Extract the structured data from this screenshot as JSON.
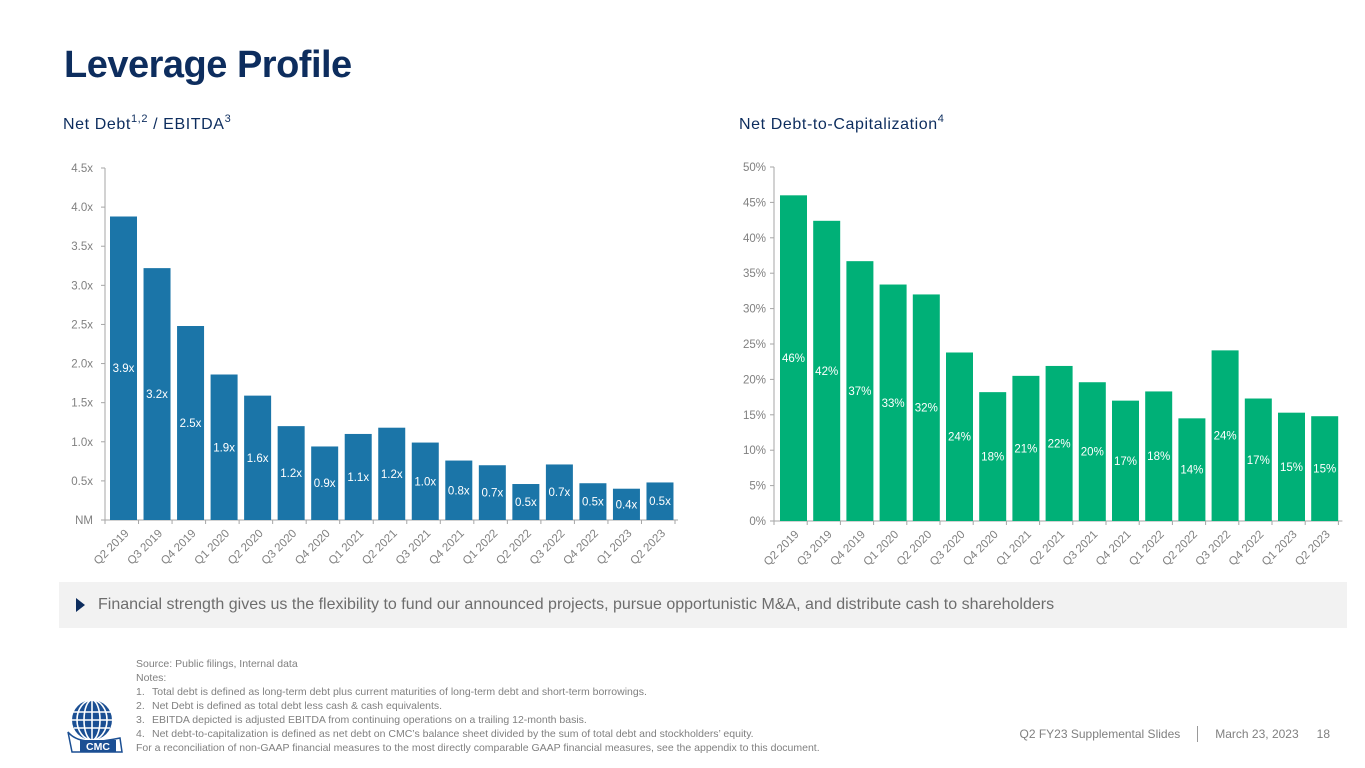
{
  "page": {
    "title": "Leverage Profile",
    "callout": "Financial strength gives us the flexibility to fund our announced projects, pursue opportunistic M&A, and distribute cash to shareholders",
    "notes": {
      "source": "Source: Public filings, Internal data",
      "heading": "Notes:",
      "items": [
        {
          "num": "1.",
          "text": "Total debt is defined as long-term debt plus current maturities of long-term debt and short-term borrowings."
        },
        {
          "num": "2.",
          "text": "Net Debt is defined as total debt less cash & cash equivalents."
        },
        {
          "num": "3.",
          "text": "EBITDA depicted is adjusted EBITDA from continuing operations on a trailing 12-month basis."
        },
        {
          "num": "4.",
          "text": "Net debt-to-capitalization is defined as net debt on CMC’s balance sheet divided by the sum of total debt and stockholders’ equity."
        }
      ],
      "reconciliation": "For a reconciliation of non-GAAP financial measures to the most directly comparable GAAP financial measures, see the appendix to this document."
    },
    "footer": {
      "deck": "Q2 FY23 Supplemental Slides",
      "date": "March 23, 2023",
      "page_number": "18"
    },
    "logo": {
      "text": "CMC",
      "icon": "globe-icon"
    },
    "callout_icon": "triangle-right-icon"
  },
  "chart_data": [
    {
      "type": "bar",
      "title": "Net Debt / EBITDA",
      "title_parts": {
        "main": "Net Debt",
        "sup1": "1,2",
        "mid": " / EBITDA",
        "sup2": "3"
      },
      "xlabel": "",
      "ylabel": "",
      "color": "#1b75a8",
      "ylim": [
        0,
        4.5
      ],
      "yticks": [
        0,
        0.5,
        1.0,
        1.5,
        2.0,
        2.5,
        3.0,
        3.5,
        4.0,
        4.5
      ],
      "ytick_labels": [
        "NM",
        "0.5x",
        "1.0x",
        "1.5x",
        "2.0x",
        "2.5x",
        "3.0x",
        "3.5x",
        "4.0x",
        "4.5x"
      ],
      "grid": false,
      "categories": [
        "Q2 2019",
        "Q3 2019",
        "Q4 2019",
        "Q1 2020",
        "Q2 2020",
        "Q3 2020",
        "Q4 2020",
        "Q1 2021",
        "Q2 2021",
        "Q3 2021",
        "Q4 2021",
        "Q1 2022",
        "Q2 2022",
        "Q3 2022",
        "Q4 2022",
        "Q1 2023",
        "Q2 2023"
      ],
      "values": [
        3.88,
        3.22,
        2.48,
        1.86,
        1.59,
        1.2,
        0.94,
        1.1,
        1.18,
        0.99,
        0.76,
        0.7,
        0.46,
        0.71,
        0.47,
        0.4,
        0.48
      ],
      "labels": [
        "3.9x",
        "3.2x",
        "2.5x",
        "1.9x",
        "1.6x",
        "1.2x",
        "0.9x",
        "1.1x",
        "1.2x",
        "1.0x",
        "0.8x",
        "0.7x",
        "0.5x",
        "0.7x",
        "0.5x",
        "0.4x",
        "0.5x"
      ]
    },
    {
      "type": "bar",
      "title": "Net Debt-to-Capitalization",
      "title_parts": {
        "main": "Net Debt-to-Capitalization",
        "sup": "4"
      },
      "xlabel": "",
      "ylabel": "",
      "color": "#00b077",
      "ylim": [
        0,
        50
      ],
      "yticks": [
        0,
        5,
        10,
        15,
        20,
        25,
        30,
        35,
        40,
        45,
        50
      ],
      "ytick_labels": [
        "0%",
        "5%",
        "10%",
        "15%",
        "20%",
        "25%",
        "30%",
        "35%",
        "40%",
        "45%",
        "50%"
      ],
      "grid": false,
      "categories": [
        "Q2 2019",
        "Q3 2019",
        "Q4 2019",
        "Q1 2020",
        "Q2 2020",
        "Q3 2020",
        "Q4 2020",
        "Q1 2021",
        "Q2 2021",
        "Q3 2021",
        "Q4 2021",
        "Q1 2022",
        "Q2 2022",
        "Q3 2022",
        "Q4 2022",
        "Q1 2023",
        "Q2 2023"
      ],
      "values": [
        46,
        42.4,
        36.7,
        33.4,
        32,
        23.8,
        18.2,
        20.5,
        21.9,
        19.6,
        17,
        18.3,
        14.5,
        24.1,
        17.3,
        15.3,
        14.8
      ],
      "labels": [
        "46%",
        "42%",
        "37%",
        "33%",
        "32%",
        "24%",
        "18%",
        "21%",
        "22%",
        "20%",
        "17%",
        "18%",
        "14%",
        "24%",
        "17%",
        "15%",
        "15%"
      ]
    }
  ]
}
